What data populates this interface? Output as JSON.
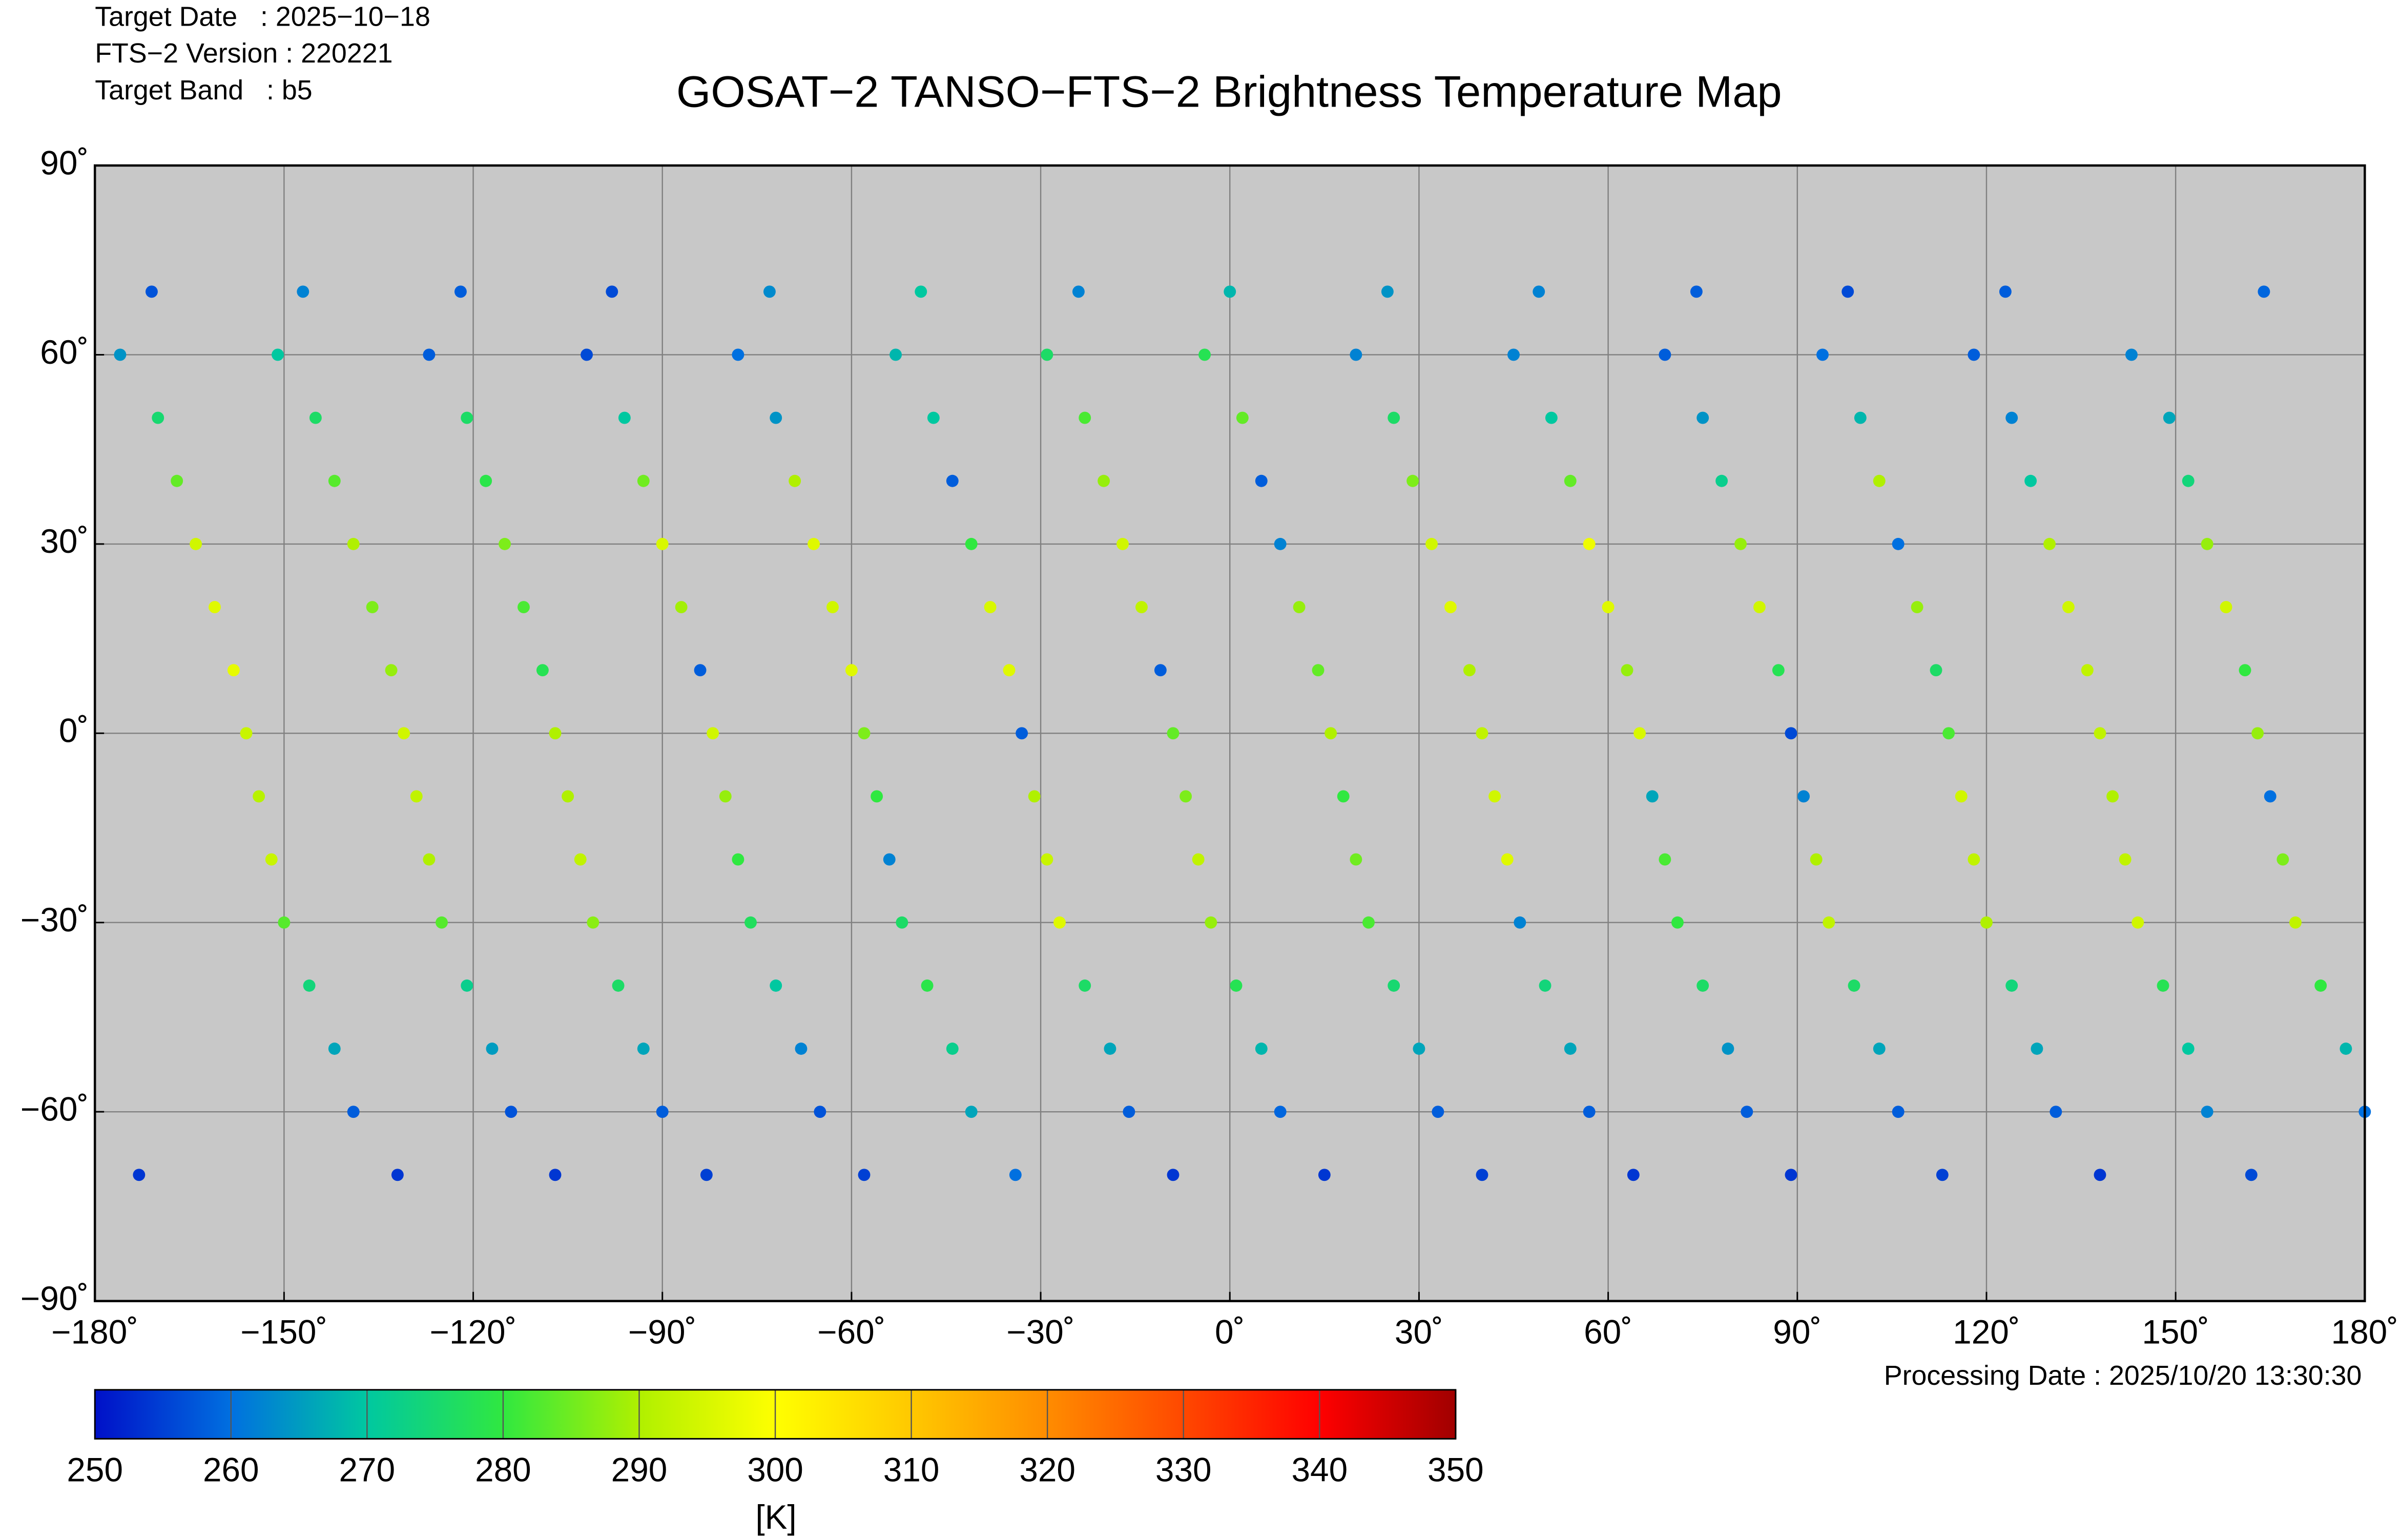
{
  "chart_data": {
    "type": "scatter",
    "title": "GOSAT−2 TANSO−FTS−2 Brightness Temperature Map",
    "header": [
      "Target Date   : 2025−10−18",
      "FTS−2 Version : 220221",
      "Target Band   : b5"
    ],
    "footnote": "Processing Date : 2025/10/20 13:30:30",
    "colorbar_label": "[K]",
    "background": "#c8c8c8",
    "grid": true,
    "xlim": [
      -180,
      180
    ],
    "ylim": [
      -90,
      90
    ],
    "xticks": [
      {
        "value": -180,
        "label": "−180˚"
      },
      {
        "value": -150,
        "label": "−150˚"
      },
      {
        "value": -120,
        "label": "−120˚"
      },
      {
        "value": -90,
        "label": "−90˚"
      },
      {
        "value": -60,
        "label": "−60˚"
      },
      {
        "value": -30,
        "label": "−30˚"
      },
      {
        "value": 0,
        "label": "0˚"
      },
      {
        "value": 30,
        "label": "30˚"
      },
      {
        "value": 60,
        "label": "60˚"
      },
      {
        "value": 90,
        "label": "90˚"
      },
      {
        "value": 120,
        "label": "120˚"
      },
      {
        "value": 150,
        "label": "150˚"
      },
      {
        "value": 180,
        "label": "180˚"
      }
    ],
    "yticks": [
      {
        "value": -90,
        "label": "−90˚"
      },
      {
        "value": -60,
        "label": "−60˚"
      },
      {
        "value": -30,
        "label": "−30˚"
      },
      {
        "value": 0,
        "label": "0˚"
      },
      {
        "value": 30,
        "label": "30˚"
      },
      {
        "value": 60,
        "label": "60˚"
      },
      {
        "value": 90,
        "label": "90˚"
      }
    ],
    "clim": [
      250,
      350
    ],
    "cticks": [
      250,
      260,
      270,
      280,
      290,
      300,
      310,
      320,
      330,
      340,
      350
    ],
    "colormap": [
      "#0010c8",
      "#0070e0",
      "#00c8a0",
      "#30e840",
      "#b0f000",
      "#ffff00",
      "#ffc800",
      "#ff8c00",
      "#ff4800",
      "#ff0000",
      "#a00000"
    ],
    "series": [
      {
        "x": [
          164,
          -176,
          -170,
          -167,
          -164,
          -161,
          -158,
          -156,
          -154,
          -152,
          -150,
          -146,
          -142,
          -139,
          -132
        ],
        "y": [
          70,
          60,
          50,
          40,
          30,
          20,
          10,
          0,
          -10,
          -20,
          -30,
          -40,
          -50,
          -60,
          -70
        ],
        "values": [
          259,
          264,
          275,
          284,
          294,
          296,
          297,
          293,
          291,
          293,
          283,
          274,
          266,
          258,
          254
        ]
      },
      {
        "x": [
          -171,
          -151,
          -145,
          -142,
          -139,
          -136,
          -133,
          -131,
          -129,
          -127,
          -125,
          -121,
          -117,
          -114,
          -107
        ],
        "y": [
          70,
          60,
          50,
          40,
          30,
          20,
          10,
          0,
          -10,
          -20,
          -30,
          -40,
          -50,
          -60,
          -70
        ],
        "values": [
          257,
          270,
          276,
          283,
          290,
          286,
          288,
          294,
          292,
          290,
          283,
          272,
          265,
          257,
          254
        ]
      },
      {
        "x": [
          -147,
          -127,
          -121,
          -118,
          -115,
          -112,
          -109,
          -107,
          -105,
          -103,
          -101,
          -97,
          -93,
          -90,
          -83
        ],
        "y": [
          70,
          60,
          50,
          40,
          30,
          20,
          10,
          0,
          -10,
          -20,
          -30,
          -40,
          -50,
          -60,
          -70
        ],
        "values": [
          262,
          258,
          276,
          279,
          286,
          282,
          278,
          290,
          290,
          292,
          287,
          276,
          266,
          258,
          255
        ]
      },
      {
        "x": [
          -122,
          -102,
          -96,
          -93,
          -90,
          -87,
          -84,
          -82,
          -80,
          -78,
          -76,
          -72,
          -68,
          -65,
          -58
        ],
        "y": [
          70,
          60,
          50,
          40,
          30,
          20,
          10,
          0,
          -10,
          -20,
          -30,
          -40,
          -50,
          -60,
          -70
        ],
        "values": [
          258,
          256,
          270,
          285,
          295,
          289,
          258,
          294,
          288,
          280,
          277,
          270,
          262,
          257,
          255
        ]
      },
      {
        "x": [
          -98,
          -78,
          -72,
          -69,
          -66,
          -63,
          -60,
          -58,
          -56,
          -54,
          -52,
          -48,
          -44,
          -41,
          -34
        ],
        "y": [
          70,
          60,
          50,
          40,
          30,
          20,
          10,
          0,
          -10,
          -20,
          -30,
          -40,
          -50,
          -60,
          -70
        ],
        "values": [
          256,
          260,
          264,
          290,
          296,
          294,
          296,
          286,
          280,
          262,
          276,
          279,
          272,
          266,
          260
        ]
      },
      {
        "x": [
          -73,
          -53,
          -47,
          -44,
          -41,
          -38,
          -35,
          -33,
          -31,
          -29,
          -27,
          -23,
          -19,
          -16,
          -9
        ],
        "y": [
          70,
          60,
          50,
          40,
          30,
          20,
          10,
          0,
          -10,
          -20,
          -30,
          -40,
          -50,
          -60,
          -70
        ],
        "values": [
          263,
          268,
          270,
          258,
          280,
          295,
          296,
          258,
          290,
          293,
          296,
          276,
          266,
          258,
          254
        ]
      },
      {
        "x": [
          -49,
          -29,
          -23,
          -20,
          -17,
          -14,
          -11,
          -9,
          -7,
          -5,
          -3,
          1,
          5,
          8,
          15
        ],
        "y": [
          70,
          60,
          50,
          40,
          30,
          20,
          10,
          0,
          -10,
          -20,
          -30,
          -40,
          -50,
          -60,
          -70
        ],
        "values": [
          270,
          276,
          282,
          288,
          294,
          292,
          258,
          284,
          286,
          292,
          288,
          278,
          268,
          259,
          254
        ]
      },
      {
        "x": [
          -24,
          -4,
          2,
          5,
          8,
          11,
          14,
          16,
          18,
          20,
          22,
          26,
          30,
          33,
          40
        ],
        "y": [
          70,
          60,
          50,
          40,
          30,
          20,
          10,
          0,
          -10,
          -20,
          -30,
          -40,
          -50,
          -60,
          -70
        ],
        "values": [
          262,
          278,
          284,
          258,
          262,
          288,
          284,
          290,
          280,
          285,
          282,
          275,
          266,
          258,
          255
        ]
      },
      {
        "x": [
          0,
          20,
          26,
          29,
          32,
          35,
          38,
          40,
          42,
          44,
          46,
          50,
          54,
          57,
          64
        ],
        "y": [
          70,
          60,
          50,
          40,
          30,
          20,
          10,
          0,
          -10,
          -20,
          -30,
          -40,
          -50,
          -60,
          -70
        ],
        "values": [
          268,
          262,
          276,
          286,
          294,
          296,
          290,
          292,
          294,
          296,
          262,
          274,
          266,
          258,
          254
        ]
      },
      {
        "x": [
          25,
          45,
          51,
          54,
          57,
          60,
          63,
          65,
          67,
          69,
          71,
          75,
          79,
          82,
          89
        ],
        "y": [
          70,
          60,
          50,
          40,
          30,
          20,
          10,
          0,
          -10,
          -20,
          -30,
          -40,
          -50,
          -60,
          -70
        ],
        "values": [
          264,
          262,
          270,
          284,
          298,
          296,
          288,
          295,
          266,
          282,
          280,
          276,
          264,
          258,
          254
        ]
      },
      {
        "x": [
          49,
          69,
          75,
          78,
          81,
          84,
          87,
          89,
          91,
          93,
          95,
          99,
          103,
          106,
          113
        ],
        "y": [
          70,
          60,
          50,
          40,
          30,
          20,
          10,
          0,
          -10,
          -20,
          -30,
          -40,
          -50,
          -60,
          -70
        ],
        "values": [
          262,
          258,
          264,
          272,
          288,
          294,
          278,
          256,
          262,
          290,
          292,
          276,
          266,
          258,
          255
        ]
      },
      {
        "x": [
          74,
          94,
          100,
          103,
          106,
          109,
          112,
          114,
          116,
          118,
          120,
          124,
          128,
          131,
          138
        ],
        "y": [
          70,
          60,
          50,
          40,
          30,
          20,
          10,
          0,
          -10,
          -20,
          -30,
          -40,
          -50,
          -60,
          -70
        ],
        "values": [
          258,
          260,
          268,
          290,
          260,
          288,
          276,
          282,
          294,
          292,
          290,
          274,
          266,
          258,
          254
        ]
      },
      {
        "x": [
          98,
          118,
          124,
          127,
          130,
          133,
          136,
          138,
          140,
          142,
          144,
          148,
          152,
          155,
          162
        ],
        "y": [
          70,
          60,
          50,
          40,
          30,
          20,
          10,
          0,
          -10,
          -20,
          -30,
          -40,
          -50,
          -60,
          -70
        ],
        "values": [
          256,
          258,
          262,
          270,
          290,
          294,
          292,
          292,
          290,
          292,
          294,
          278,
          270,
          262,
          256
        ]
      },
      {
        "x": [
          123,
          143,
          149,
          152,
          155,
          158,
          161,
          163,
          165,
          167,
          169,
          173,
          177,
          180,
          -173
        ],
        "y": [
          70,
          60,
          50,
          40,
          30,
          20,
          10,
          0,
          -10,
          -20,
          -30,
          -40,
          -50,
          -60,
          -70
        ],
        "values": [
          258,
          262,
          266,
          274,
          288,
          294,
          280,
          288,
          260,
          286,
          292,
          280,
          268,
          260,
          254
        ]
      }
    ]
  }
}
